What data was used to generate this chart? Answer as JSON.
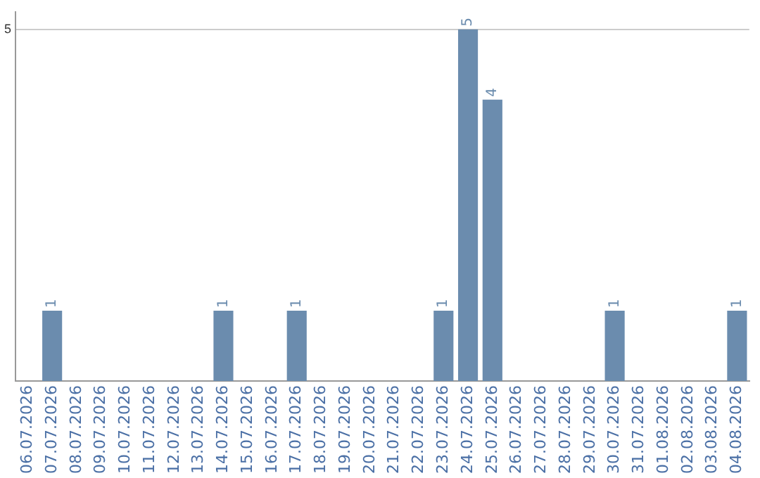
{
  "chart_data": {
    "type": "bar",
    "categories": [
      "06.07.2026",
      "07.07.2026",
      "08.07.2026",
      "09.07.2026",
      "10.07.2026",
      "11.07.2026",
      "12.07.2026",
      "13.07.2026",
      "14.07.2026",
      "15.07.2026",
      "16.07.2026",
      "17.07.2026",
      "18.07.2026",
      "19.07.2026",
      "20.07.2026",
      "21.07.2026",
      "22.07.2026",
      "23.07.2026",
      "24.07.2026",
      "25.07.2026",
      "26.07.2026",
      "27.07.2026",
      "28.07.2026",
      "29.07.2026",
      "30.07.2026",
      "31.07.2026",
      "01.08.2026",
      "02.08.2026",
      "03.08.2026",
      "04.08.2026"
    ],
    "values": [
      0,
      1,
      0,
      0,
      0,
      0,
      0,
      0,
      1,
      0,
      0,
      1,
      0,
      0,
      0,
      0,
      0,
      1,
      5,
      4,
      0,
      0,
      0,
      0,
      1,
      0,
      0,
      0,
      0,
      1
    ],
    "value_labels": [
      null,
      "1",
      null,
      null,
      null,
      null,
      null,
      null,
      "1",
      null,
      null,
      "1",
      null,
      null,
      null,
      null,
      null,
      "1",
      "5",
      "4",
      null,
      null,
      null,
      null,
      "1",
      null,
      null,
      null,
      null,
      "1"
    ],
    "color": "#6b8cae",
    "ylim": [
      0,
      5.25
    ],
    "yticks": [
      5
    ],
    "grid": "y",
    "legend": false
  }
}
